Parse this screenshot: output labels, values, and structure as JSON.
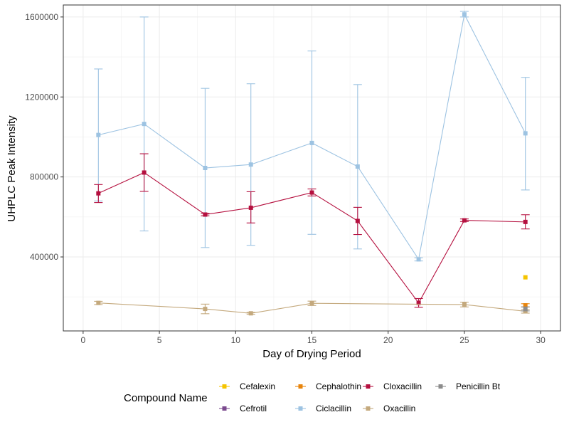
{
  "chart_data": {
    "type": "line",
    "title": "",
    "xlabel": "Day of Drying Period",
    "ylabel": "UHPLC Peak Intensity",
    "xlim": [
      -1.3,
      31.3
    ],
    "ylim": [
      30000,
      1660000
    ],
    "x_ticks": [
      0,
      5,
      10,
      15,
      20,
      25,
      30
    ],
    "y_ticks": [
      400000,
      800000,
      1200000,
      1600000
    ],
    "x_tick_labels": [
      "0",
      "5",
      "10",
      "15",
      "20",
      "25",
      "30"
    ],
    "y_tick_labels": [
      "400000",
      "800000",
      "1200000",
      "1600000"
    ],
    "grid": true,
    "legend": {
      "title": "Compound Name",
      "placement": "bottom",
      "order": [
        "Cefalexin",
        "Cefrotil",
        "Cephalothin",
        "Ciclacillin",
        "Cloxacillin",
        "Oxacillin",
        "Penicillin Bt"
      ]
    },
    "series": [
      {
        "name": "Cefalexin",
        "color": "#F5C400",
        "points": [
          {
            "x": 29,
            "y": 298000
          }
        ]
      },
      {
        "name": "Cefrotil",
        "color": "#7B4A8E",
        "points": []
      },
      {
        "name": "Cephalothin",
        "color": "#E8850C",
        "points": [
          {
            "x": 29,
            "y": 158000,
            "lo": 150000,
            "hi": 166000
          }
        ]
      },
      {
        "name": "Ciclacillin",
        "color": "#9DC3E2",
        "points": [
          {
            "x": 1,
            "y": 1010000,
            "lo": 680000,
            "hi": 1340000
          },
          {
            "x": 4,
            "y": 1065000,
            "lo": 530000,
            "hi": 1600000
          },
          {
            "x": 8,
            "y": 845000,
            "lo": 447000,
            "hi": 1243000
          },
          {
            "x": 11,
            "y": 862000,
            "lo": 458000,
            "hi": 1266000
          },
          {
            "x": 15,
            "y": 970000,
            "lo": 513000,
            "hi": 1430000
          },
          {
            "x": 18,
            "y": 852000,
            "lo": 440000,
            "hi": 1262000
          },
          {
            "x": 22,
            "y": 388000,
            "lo": 380000,
            "hi": 396000
          },
          {
            "x": 25,
            "y": 1613000,
            "lo": 1600000,
            "hi": 1628000
          },
          {
            "x": 29,
            "y": 1018000,
            "lo": 735000,
            "hi": 1298000
          }
        ]
      },
      {
        "name": "Cloxacillin",
        "color": "#B5103F",
        "points": [
          {
            "x": 1,
            "y": 718000,
            "lo": 672000,
            "hi": 762000
          },
          {
            "x": 4,
            "y": 822000,
            "lo": 728000,
            "hi": 916000
          },
          {
            "x": 8,
            "y": 612000,
            "lo": 606000,
            "hi": 618000
          },
          {
            "x": 11,
            "y": 646000,
            "lo": 570000,
            "hi": 726000
          },
          {
            "x": 15,
            "y": 722000,
            "lo": 705000,
            "hi": 740000
          },
          {
            "x": 18,
            "y": 580000,
            "lo": 512000,
            "hi": 648000
          },
          {
            "x": 22,
            "y": 170000,
            "lo": 148000,
            "hi": 192000
          },
          {
            "x": 25,
            "y": 583000,
            "lo": 577000,
            "hi": 590000
          },
          {
            "x": 29,
            "y": 575000,
            "lo": 540000,
            "hi": 611000
          }
        ]
      },
      {
        "name": "Oxacillin",
        "color": "#C4A97D",
        "points": [
          {
            "x": 1,
            "y": 170000,
            "lo": 162000,
            "hi": 178000
          },
          {
            "x": 8,
            "y": 140000,
            "lo": 116000,
            "hi": 164000
          },
          {
            "x": 11,
            "y": 118000,
            "lo": 113000,
            "hi": 123000
          },
          {
            "x": 15,
            "y": 168000,
            "lo": 157000,
            "hi": 179000
          },
          {
            "x": 25,
            "y": 162000,
            "lo": 150000,
            "hi": 174000
          },
          {
            "x": 29,
            "y": 128000,
            "lo": 119000,
            "hi": 137000
          }
        ]
      },
      {
        "name": "Penicillin Bt",
        "color": "#8C8C8C",
        "points": [
          {
            "x": 29,
            "y": 140000,
            "lo": 130000,
            "hi": 150000
          }
        ]
      }
    ]
  }
}
